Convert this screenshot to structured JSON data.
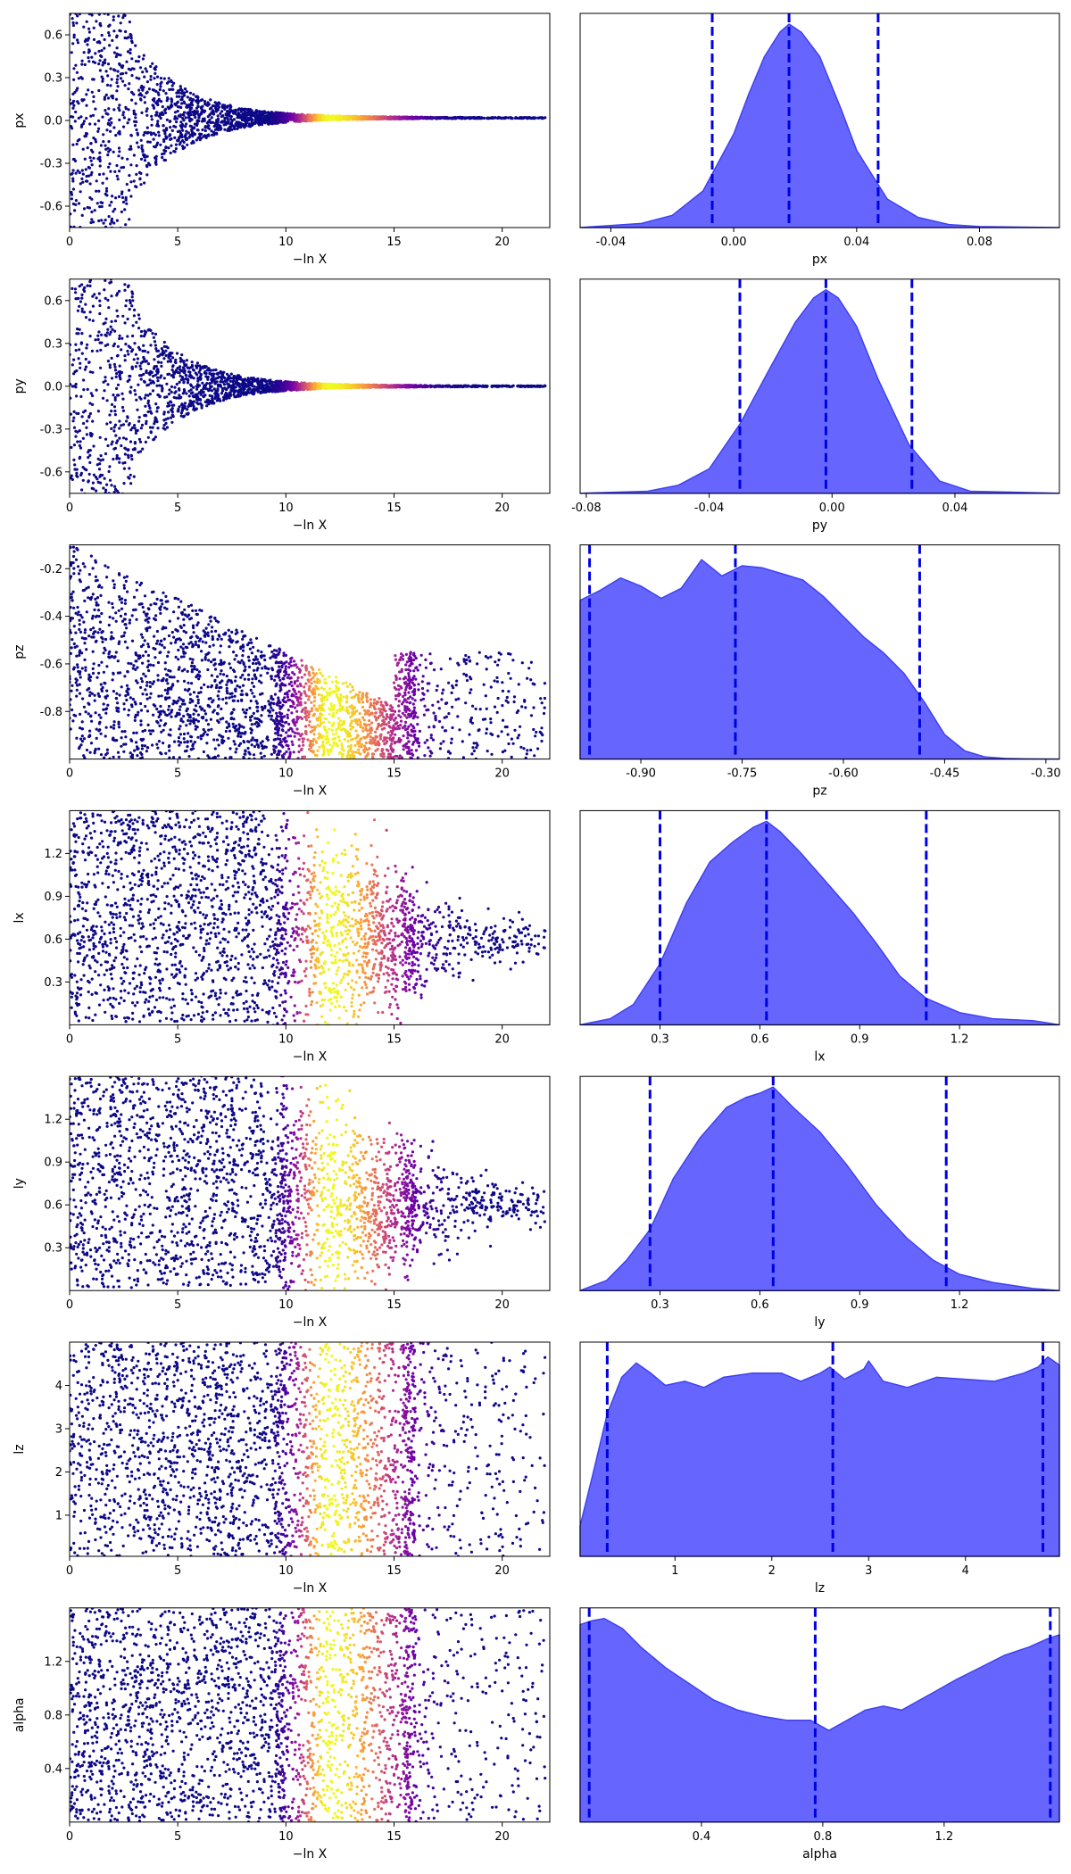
{
  "figure": {
    "type": "trace-plot"
  },
  "colors": {
    "kde_fill": "#6666ff",
    "kde_edge": "#4040f0",
    "quantile_line": "#0000e0",
    "colormap": [
      "#0d0887",
      "#6a00a8",
      "#b12a90",
      "#e16462",
      "#fca636",
      "#f0f921"
    ]
  },
  "chart_data": [
    {
      "type": "scatter",
      "param": "px",
      "xlabel": "−ln X",
      "ylabel": "px",
      "xlim": [
        0,
        22.2
      ],
      "ylim": [
        -0.75,
        0.75
      ],
      "x_ticks": [
        "0",
        "5",
        "10",
        "15",
        "20"
      ],
      "y_ticks": [
        "-0.6",
        "-0.3",
        "0.0",
        "0.3",
        "0.6"
      ],
      "y_tick_values": [
        -0.6,
        -0.3,
        0.0,
        0.3,
        0.6
      ],
      "envelope": "funnel",
      "center": 0.018,
      "spread_start": 0.75,
      "bright_peak": 12
    },
    {
      "type": "area",
      "param": "px",
      "xlabel": "px",
      "xlim": [
        -0.05,
        0.106
      ],
      "x_ticks": [
        "-0.04",
        "0.00",
        "0.04",
        "0.08"
      ],
      "x_tick_values": [
        -0.04,
        0.0,
        0.04,
        0.08
      ],
      "kde_x": [
        -0.05,
        -0.03,
        -0.02,
        -0.01,
        0.0,
        0.005,
        0.01,
        0.015,
        0.018,
        0.022,
        0.028,
        0.035,
        0.04,
        0.05,
        0.06,
        0.07,
        0.08,
        0.106
      ],
      "kde_y": [
        0.0,
        0.02,
        0.06,
        0.18,
        0.46,
        0.66,
        0.84,
        0.96,
        1.0,
        0.96,
        0.84,
        0.58,
        0.38,
        0.14,
        0.05,
        0.015,
        0.005,
        0.0
      ],
      "quantiles": [
        -0.007,
        0.018,
        0.047
      ]
    },
    {
      "type": "scatter",
      "param": "py",
      "xlabel": "−ln X",
      "ylabel": "py",
      "xlim": [
        0,
        22.2
      ],
      "ylim": [
        -0.75,
        0.75
      ],
      "x_ticks": [
        "0",
        "5",
        "10",
        "15",
        "20"
      ],
      "y_ticks": [
        "-0.6",
        "-0.3",
        "0.0",
        "0.3",
        "0.6"
      ],
      "y_tick_values": [
        -0.6,
        -0.3,
        0.0,
        0.3,
        0.6
      ],
      "envelope": "funnel",
      "center": 0.0,
      "spread_start": 0.75,
      "bright_peak": 12
    },
    {
      "type": "area",
      "param": "py",
      "xlabel": "py",
      "xlim": [
        -0.082,
        0.074
      ],
      "x_ticks": [
        "-0.08",
        "-0.04",
        "0.00",
        "0.04"
      ],
      "x_tick_values": [
        -0.08,
        -0.04,
        0.0,
        0.04
      ],
      "kde_x": [
        -0.082,
        -0.06,
        -0.05,
        -0.04,
        -0.03,
        -0.02,
        -0.012,
        -0.006,
        -0.002,
        0.002,
        0.008,
        0.015,
        0.025,
        0.035,
        0.045,
        0.074
      ],
      "kde_y": [
        0.0,
        0.01,
        0.04,
        0.12,
        0.34,
        0.62,
        0.84,
        0.96,
        1.0,
        0.96,
        0.82,
        0.56,
        0.24,
        0.06,
        0.01,
        0.0
      ],
      "quantiles": [
        -0.03,
        -0.002,
        0.026
      ]
    },
    {
      "type": "scatter",
      "param": "pz",
      "xlabel": "−ln X",
      "ylabel": "pz",
      "xlim": [
        0,
        22.2
      ],
      "ylim": [
        -1.0,
        -0.1
      ],
      "x_ticks": [
        "0",
        "5",
        "10",
        "15",
        "20"
      ],
      "y_ticks": [
        "-0.8",
        "-0.6",
        "-0.4",
        "-0.2"
      ],
      "y_tick_values": [
        -0.8,
        -0.6,
        -0.4,
        -0.2
      ],
      "envelope": "bottom-wedge",
      "center": -0.8,
      "bright_peak": 12
    },
    {
      "type": "area",
      "param": "pz",
      "xlabel": "pz",
      "xlim": [
        -0.99,
        -0.28
      ],
      "x_ticks": [
        "-0.90",
        "-0.75",
        "-0.60",
        "-0.45",
        "-0.30"
      ],
      "x_tick_values": [
        -0.9,
        -0.75,
        -0.6,
        -0.45,
        -0.3
      ],
      "kde_x": [
        -0.99,
        -0.96,
        -0.93,
        -0.9,
        -0.87,
        -0.84,
        -0.81,
        -0.78,
        -0.75,
        -0.72,
        -0.69,
        -0.66,
        -0.63,
        -0.6,
        -0.57,
        -0.54,
        -0.51,
        -0.48,
        -0.45,
        -0.42,
        -0.39,
        -0.36,
        -0.33,
        -0.28
      ],
      "kde_y": [
        0.78,
        0.83,
        0.89,
        0.85,
        0.79,
        0.84,
        0.98,
        0.9,
        0.95,
        0.94,
        0.91,
        0.88,
        0.8,
        0.7,
        0.6,
        0.52,
        0.42,
        0.28,
        0.12,
        0.04,
        0.01,
        0.003,
        0.001,
        0.0
      ],
      "quantiles": [
        -0.976,
        -0.76,
        -0.487
      ]
    },
    {
      "type": "scatter",
      "param": "lx",
      "xlabel": "−ln X",
      "ylabel": "lx",
      "xlim": [
        0,
        22.2
      ],
      "ylim": [
        0.0,
        1.5
      ],
      "x_ticks": [
        "0",
        "5",
        "10",
        "15",
        "20"
      ],
      "y_ticks": [
        "0.3",
        "0.6",
        "0.9",
        "1.2"
      ],
      "y_tick_values": [
        0.3,
        0.6,
        0.9,
        1.2
      ],
      "envelope": "spread",
      "center": 0.6,
      "bright_peak": 12
    },
    {
      "type": "area",
      "param": "lx",
      "xlabel": "lx",
      "xlim": [
        0.06,
        1.5
      ],
      "x_ticks": [
        "0.3",
        "0.6",
        "0.9",
        "1.2"
      ],
      "x_tick_values": [
        0.3,
        0.6,
        0.9,
        1.2
      ],
      "kde_x": [
        0.06,
        0.15,
        0.22,
        0.3,
        0.38,
        0.45,
        0.52,
        0.58,
        0.62,
        0.66,
        0.72,
        0.8,
        0.88,
        0.95,
        1.02,
        1.1,
        1.2,
        1.3,
        1.42,
        1.5
      ],
      "kde_y": [
        0.0,
        0.03,
        0.1,
        0.3,
        0.6,
        0.8,
        0.9,
        0.97,
        1.0,
        0.95,
        0.85,
        0.7,
        0.55,
        0.4,
        0.24,
        0.13,
        0.06,
        0.03,
        0.02,
        0.0
      ],
      "quantiles": [
        0.3,
        0.62,
        1.1
      ]
    },
    {
      "type": "scatter",
      "param": "ly",
      "xlabel": "−ln X",
      "ylabel": "ly",
      "xlim": [
        0,
        22.2
      ],
      "ylim": [
        0.0,
        1.5
      ],
      "x_ticks": [
        "0",
        "5",
        "10",
        "15",
        "20"
      ],
      "y_ticks": [
        "0.3",
        "0.6",
        "0.9",
        "1.2"
      ],
      "y_tick_values": [
        0.3,
        0.6,
        0.9,
        1.2
      ],
      "envelope": "spread",
      "center": 0.6,
      "bright_peak": 12
    },
    {
      "type": "area",
      "param": "ly",
      "xlabel": "ly",
      "xlim": [
        0.06,
        1.5
      ],
      "x_ticks": [
        "0.3",
        "0.6",
        "0.9",
        "1.2"
      ],
      "x_tick_values": [
        0.3,
        0.6,
        0.9,
        1.2
      ],
      "kde_x": [
        0.06,
        0.14,
        0.2,
        0.27,
        0.34,
        0.42,
        0.5,
        0.56,
        0.6,
        0.64,
        0.7,
        0.78,
        0.86,
        0.95,
        1.04,
        1.12,
        1.2,
        1.3,
        1.42,
        1.5
      ],
      "kde_y": [
        0.0,
        0.05,
        0.15,
        0.3,
        0.55,
        0.75,
        0.9,
        0.95,
        0.97,
        1.0,
        0.9,
        0.78,
        0.62,
        0.42,
        0.26,
        0.15,
        0.08,
        0.04,
        0.01,
        0.0
      ],
      "quantiles": [
        0.27,
        0.64,
        1.16
      ]
    },
    {
      "type": "scatter",
      "param": "lz",
      "xlabel": "−ln X",
      "ylabel": "lz",
      "xlim": [
        0,
        22.2
      ],
      "ylim": [
        0.05,
        5.0
      ],
      "x_ticks": [
        "0",
        "5",
        "10",
        "15",
        "20"
      ],
      "y_ticks": [
        "1",
        "2",
        "3",
        "4"
      ],
      "y_tick_values": [
        1,
        2,
        3,
        4
      ],
      "envelope": "uniform",
      "bright_peak": 12
    },
    {
      "type": "area",
      "param": "lz",
      "xlabel": "lz",
      "xlim": [
        0.02,
        4.97
      ],
      "x_ticks": [
        "1",
        "2",
        "3",
        "4"
      ],
      "x_tick_values": [
        1,
        2,
        3,
        4
      ],
      "kde_x": [
        0.02,
        0.15,
        0.3,
        0.45,
        0.6,
        0.75,
        0.9,
        1.1,
        1.3,
        1.5,
        1.8,
        2.1,
        2.3,
        2.5,
        2.6,
        2.75,
        2.95,
        3.0,
        3.15,
        3.4,
        3.7,
        4.0,
        4.3,
        4.6,
        4.75,
        4.85,
        4.97
      ],
      "kde_y": [
        0.15,
        0.4,
        0.7,
        0.88,
        0.95,
        0.9,
        0.84,
        0.86,
        0.83,
        0.88,
        0.9,
        0.9,
        0.86,
        0.9,
        0.93,
        0.87,
        0.92,
        0.96,
        0.86,
        0.83,
        0.88,
        0.87,
        0.86,
        0.9,
        0.93,
        0.98,
        0.94
      ],
      "quantiles": [
        0.3,
        2.63,
        4.8
      ]
    },
    {
      "type": "scatter",
      "param": "alpha",
      "xlabel": "−ln X",
      "ylabel": "alpha",
      "xlim": [
        0,
        22.2
      ],
      "ylim": [
        0.0,
        1.6
      ],
      "x_ticks": [
        "0",
        "5",
        "10",
        "15",
        "20"
      ],
      "y_ticks": [
        "0.4",
        "0.8",
        "1.2"
      ],
      "y_tick_values": [
        0.4,
        0.8,
        1.2
      ],
      "envelope": "uniform",
      "bright_peak": 12
    },
    {
      "type": "area",
      "param": "alpha",
      "xlabel": "alpha",
      "xlim": [
        0.0,
        1.58
      ],
      "x_ticks": [
        "0.4",
        "0.8",
        "1.2"
      ],
      "x_tick_values": [
        0.4,
        0.8,
        1.2
      ],
      "kde_x": [
        0.0,
        0.04,
        0.08,
        0.14,
        0.2,
        0.28,
        0.36,
        0.44,
        0.52,
        0.6,
        0.68,
        0.76,
        0.82,
        0.88,
        0.94,
        1.0,
        1.06,
        1.12,
        1.18,
        1.24,
        1.32,
        1.4,
        1.48,
        1.54,
        1.58
      ],
      "kde_y": [
        0.97,
        0.99,
        1.0,
        0.95,
        0.86,
        0.76,
        0.68,
        0.6,
        0.55,
        0.52,
        0.5,
        0.5,
        0.45,
        0.5,
        0.55,
        0.57,
        0.55,
        0.6,
        0.65,
        0.7,
        0.76,
        0.82,
        0.86,
        0.9,
        0.92
      ],
      "quantiles": [
        0.03,
        0.775,
        1.55
      ]
    }
  ]
}
